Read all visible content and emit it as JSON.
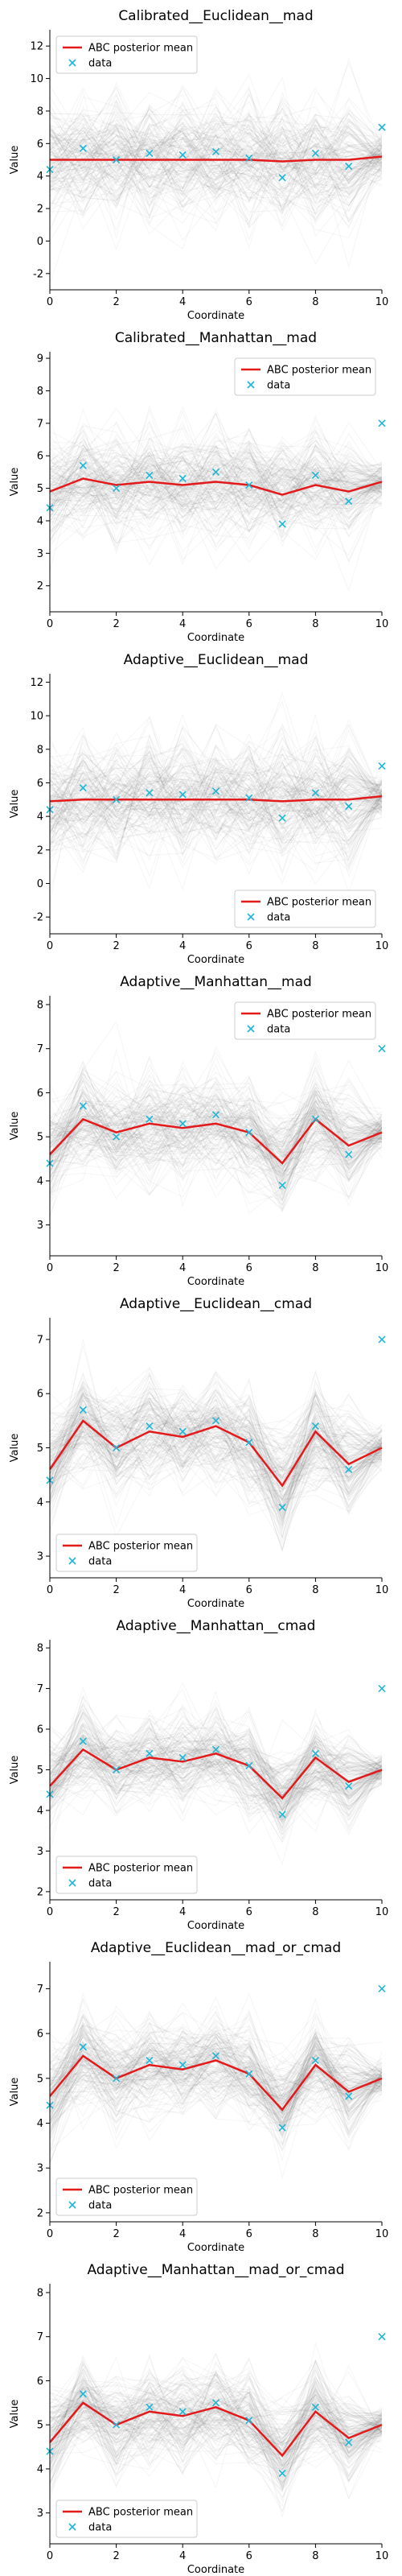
{
  "chart_data": [
    {
      "type": "line",
      "title": "Calibrated__Euclidean__mad",
      "xlabel": "Coordinate",
      "ylabel": "Value",
      "xlim": [
        0,
        10
      ],
      "ylim": [
        -3,
        13
      ],
      "xticks": [
        0,
        2,
        4,
        6,
        8,
        10
      ],
      "yticks": [
        -2,
        0,
        2,
        4,
        6,
        8,
        10,
        12
      ],
      "legend": "top-left",
      "spread": 4.2,
      "series": [
        {
          "name": "ABC posterior mean",
          "color": "#e31a1c",
          "x": [
            0,
            1,
            2,
            3,
            4,
            5,
            6,
            7,
            8,
            9,
            10
          ],
          "values": [
            5.0,
            5.0,
            5.0,
            5.0,
            5.0,
            5.0,
            5.0,
            4.9,
            5.0,
            5.0,
            5.2
          ]
        },
        {
          "name": "data",
          "color": "#1fb6d6",
          "x": [
            0,
            1,
            2,
            3,
            4,
            5,
            6,
            7,
            8,
            9,
            10
          ],
          "values": [
            4.4,
            5.7,
            5.0,
            5.4,
            5.3,
            5.5,
            5.1,
            3.9,
            5.4,
            4.6,
            7.0
          ]
        }
      ]
    },
    {
      "type": "line",
      "title": "Calibrated__Manhattan__mad",
      "xlabel": "Coordinate",
      "ylabel": "Value",
      "xlim": [
        0,
        10
      ],
      "ylim": [
        1.2,
        9.2
      ],
      "xticks": [
        0,
        2,
        4,
        6,
        8,
        10
      ],
      "yticks": [
        2,
        3,
        4,
        5,
        6,
        7,
        8,
        9
      ],
      "legend": "top-right",
      "spread": 1.8,
      "series": [
        {
          "name": "ABC posterior mean",
          "color": "#e31a1c",
          "x": [
            0,
            1,
            2,
            3,
            4,
            5,
            6,
            7,
            8,
            9,
            10
          ],
          "values": [
            4.9,
            5.3,
            5.1,
            5.2,
            5.1,
            5.2,
            5.1,
            4.8,
            5.1,
            4.9,
            5.2
          ]
        },
        {
          "name": "data",
          "color": "#1fb6d6",
          "x": [
            0,
            1,
            2,
            3,
            4,
            5,
            6,
            7,
            8,
            9,
            10
          ],
          "values": [
            4.4,
            5.7,
            5.0,
            5.4,
            5.3,
            5.5,
            5.1,
            3.9,
            5.4,
            4.6,
            7.0
          ]
        }
      ]
    },
    {
      "type": "line",
      "title": "Adaptive__Euclidean__mad",
      "xlabel": "Coordinate",
      "ylabel": "Value",
      "xlim": [
        0,
        10
      ],
      "ylim": [
        -3,
        12.5
      ],
      "xticks": [
        0,
        2,
        4,
        6,
        8,
        10
      ],
      "yticks": [
        -2,
        0,
        2,
        4,
        6,
        8,
        10,
        12
      ],
      "legend": "bottom-right",
      "spread": 4.0,
      "series": [
        {
          "name": "ABC posterior mean",
          "color": "#e31a1c",
          "x": [
            0,
            1,
            2,
            3,
            4,
            5,
            6,
            7,
            8,
            9,
            10
          ],
          "values": [
            4.9,
            5.0,
            5.0,
            5.0,
            5.0,
            5.0,
            5.0,
            4.9,
            5.0,
            5.0,
            5.2
          ]
        },
        {
          "name": "data",
          "color": "#1fb6d6",
          "x": [
            0,
            1,
            2,
            3,
            4,
            5,
            6,
            7,
            8,
            9,
            10
          ],
          "values": [
            4.4,
            5.7,
            5.0,
            5.4,
            5.3,
            5.5,
            5.1,
            3.9,
            5.4,
            4.6,
            7.0
          ]
        }
      ]
    },
    {
      "type": "line",
      "title": "Adaptive__Manhattan__mad",
      "xlabel": "Coordinate",
      "ylabel": "Value",
      "xlim": [
        0,
        10
      ],
      "ylim": [
        2.3,
        8.2
      ],
      "xticks": [
        0,
        2,
        4,
        6,
        8,
        10
      ],
      "yticks": [
        3,
        4,
        5,
        6,
        7,
        8
      ],
      "legend": "top-right",
      "spread": 1.3,
      "series": [
        {
          "name": "ABC posterior mean",
          "color": "#e31a1c",
          "x": [
            0,
            1,
            2,
            3,
            4,
            5,
            6,
            7,
            8,
            9,
            10
          ],
          "values": [
            4.6,
            5.4,
            5.1,
            5.3,
            5.2,
            5.3,
            5.1,
            4.4,
            5.4,
            4.8,
            5.1
          ]
        },
        {
          "name": "data",
          "color": "#1fb6d6",
          "x": [
            0,
            1,
            2,
            3,
            4,
            5,
            6,
            7,
            8,
            9,
            10
          ],
          "values": [
            4.4,
            5.7,
            5.0,
            5.4,
            5.3,
            5.5,
            5.1,
            3.9,
            5.4,
            4.6,
            7.0
          ]
        }
      ]
    },
    {
      "type": "line",
      "title": "Adaptive__Euclidean__cmad",
      "xlabel": "Coordinate",
      "ylabel": "Value",
      "xlim": [
        0,
        10
      ],
      "ylim": [
        2.6,
        7.4
      ],
      "xticks": [
        0,
        2,
        4,
        6,
        8,
        10
      ],
      "yticks": [
        3,
        4,
        5,
        6,
        7
      ],
      "legend": "bottom-left",
      "spread": 1.1,
      "series": [
        {
          "name": "ABC posterior mean",
          "color": "#e31a1c",
          "x": [
            0,
            1,
            2,
            3,
            4,
            5,
            6,
            7,
            8,
            9,
            10
          ],
          "values": [
            4.6,
            5.5,
            5.0,
            5.3,
            5.2,
            5.4,
            5.1,
            4.3,
            5.3,
            4.7,
            5.0
          ]
        },
        {
          "name": "data",
          "color": "#1fb6d6",
          "x": [
            0,
            1,
            2,
            3,
            4,
            5,
            6,
            7,
            8,
            9,
            10
          ],
          "values": [
            4.4,
            5.7,
            5.0,
            5.4,
            5.3,
            5.5,
            5.1,
            3.9,
            5.4,
            4.6,
            7.0
          ]
        }
      ]
    },
    {
      "type": "line",
      "title": "Adaptive__Manhattan__cmad",
      "xlabel": "Coordinate",
      "ylabel": "Value",
      "xlim": [
        0,
        10
      ],
      "ylim": [
        1.8,
        8.2
      ],
      "xticks": [
        0,
        2,
        4,
        6,
        8,
        10
      ],
      "yticks": [
        2,
        3,
        4,
        5,
        6,
        7,
        8
      ],
      "legend": "bottom-left",
      "spread": 1.2,
      "series": [
        {
          "name": "ABC posterior mean",
          "color": "#e31a1c",
          "x": [
            0,
            1,
            2,
            3,
            4,
            5,
            6,
            7,
            8,
            9,
            10
          ],
          "values": [
            4.6,
            5.5,
            5.0,
            5.3,
            5.2,
            5.4,
            5.1,
            4.3,
            5.3,
            4.7,
            5.0
          ]
        },
        {
          "name": "data",
          "color": "#1fb6d6",
          "x": [
            0,
            1,
            2,
            3,
            4,
            5,
            6,
            7,
            8,
            9,
            10
          ],
          "values": [
            4.4,
            5.7,
            5.0,
            5.4,
            5.3,
            5.5,
            5.1,
            3.9,
            5.4,
            4.6,
            7.0
          ]
        }
      ]
    },
    {
      "type": "line",
      "title": "Adaptive__Euclidean__mad_or_cmad",
      "xlabel": "Coordinate",
      "ylabel": "Value",
      "xlim": [
        0,
        10
      ],
      "ylim": [
        1.8,
        7.6
      ],
      "xticks": [
        0,
        2,
        4,
        6,
        8,
        10
      ],
      "yticks": [
        2,
        3,
        4,
        5,
        6,
        7
      ],
      "legend": "bottom-left",
      "spread": 1.2,
      "series": [
        {
          "name": "ABC posterior mean",
          "color": "#e31a1c",
          "x": [
            0,
            1,
            2,
            3,
            4,
            5,
            6,
            7,
            8,
            9,
            10
          ],
          "values": [
            4.6,
            5.5,
            5.0,
            5.3,
            5.2,
            5.4,
            5.1,
            4.3,
            5.3,
            4.7,
            5.0
          ]
        },
        {
          "name": "data",
          "color": "#1fb6d6",
          "x": [
            0,
            1,
            2,
            3,
            4,
            5,
            6,
            7,
            8,
            9,
            10
          ],
          "values": [
            4.4,
            5.7,
            5.0,
            5.4,
            5.3,
            5.5,
            5.1,
            3.9,
            5.4,
            4.6,
            7.0
          ]
        }
      ]
    },
    {
      "type": "line",
      "title": "Adaptive__Manhattan__mad_or_cmad",
      "xlabel": "Coordinate",
      "ylabel": "Value",
      "xlim": [
        0,
        10
      ],
      "ylim": [
        2.3,
        8.2
      ],
      "xticks": [
        0,
        2,
        4,
        6,
        8,
        10
      ],
      "yticks": [
        3,
        4,
        5,
        6,
        7,
        8
      ],
      "legend": "bottom-left",
      "spread": 1.2,
      "series": [
        {
          "name": "ABC posterior mean",
          "color": "#e31a1c",
          "x": [
            0,
            1,
            2,
            3,
            4,
            5,
            6,
            7,
            8,
            9,
            10
          ],
          "values": [
            4.6,
            5.5,
            5.0,
            5.3,
            5.2,
            5.4,
            5.1,
            4.3,
            5.3,
            4.7,
            5.0
          ]
        },
        {
          "name": "data",
          "color": "#1fb6d6",
          "x": [
            0,
            1,
            2,
            3,
            4,
            5,
            6,
            7,
            8,
            9,
            10
          ],
          "values": [
            4.4,
            5.7,
            5.0,
            5.4,
            5.3,
            5.5,
            5.1,
            3.9,
            5.4,
            4.6,
            7.0
          ]
        }
      ]
    }
  ]
}
